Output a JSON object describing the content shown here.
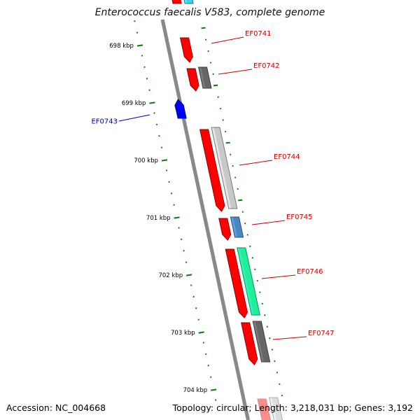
{
  "title": "Enterococcus faecalis V583, complete genome",
  "footer": {
    "accession": "Accession: NC_004668",
    "summary": "Topology: circular; Length: 3,218,031 bp; Genes: 3,192"
  },
  "colors": {
    "forward": "#ff0000",
    "reverse": "#0000ff",
    "backbone": "#888888",
    "tick": "#117711",
    "label_forward": "#cc0000",
    "label_reverse": "#0000aa",
    "track_dark_gray": "#666666",
    "track_light_gray": "#c8c8c8",
    "track_steel_blue": "#4a86c0",
    "track_spring_green": "#22ee99",
    "track_cyan": "#44ccee"
  },
  "ruler": {
    "unit": "kbp",
    "ticks": [
      {
        "kb": 698,
        "label": "698 kbp"
      },
      {
        "kb": 699,
        "label": "699 kbp"
      },
      {
        "kb": 700,
        "label": "700 kbp"
      },
      {
        "kb": 701,
        "label": "701 kbp"
      },
      {
        "kb": 702,
        "label": "702 kbp"
      },
      {
        "kb": 703,
        "label": "703 kbp"
      },
      {
        "kb": 704,
        "label": "704 kbp"
      }
    ]
  },
  "genes": [
    {
      "id": "EF0741",
      "strand": "forward",
      "label": "EF0741",
      "track2": "none"
    },
    {
      "id": "EF0742",
      "strand": "forward",
      "label": "EF0742",
      "track2": "dark_gray"
    },
    {
      "id": "EF0743",
      "strand": "reverse",
      "label": "EF0743",
      "track2": "none"
    },
    {
      "id": "EF0744",
      "strand": "forward",
      "label": "EF0744",
      "track2": "light_gray"
    },
    {
      "id": "EF0745",
      "strand": "forward",
      "label": "EF0745",
      "track2": "steel_blue"
    },
    {
      "id": "EF0746",
      "strand": "forward",
      "label": "EF0746",
      "track2": "spring_green"
    },
    {
      "id": "EF0747",
      "strand": "forward",
      "label": "EF0747",
      "track2": "dark_gray"
    }
  ],
  "partial_features": {
    "top": {
      "track1": "forward",
      "track2": "cyan"
    },
    "bottom": {
      "track1": "forward",
      "track2": "light_gray"
    }
  }
}
